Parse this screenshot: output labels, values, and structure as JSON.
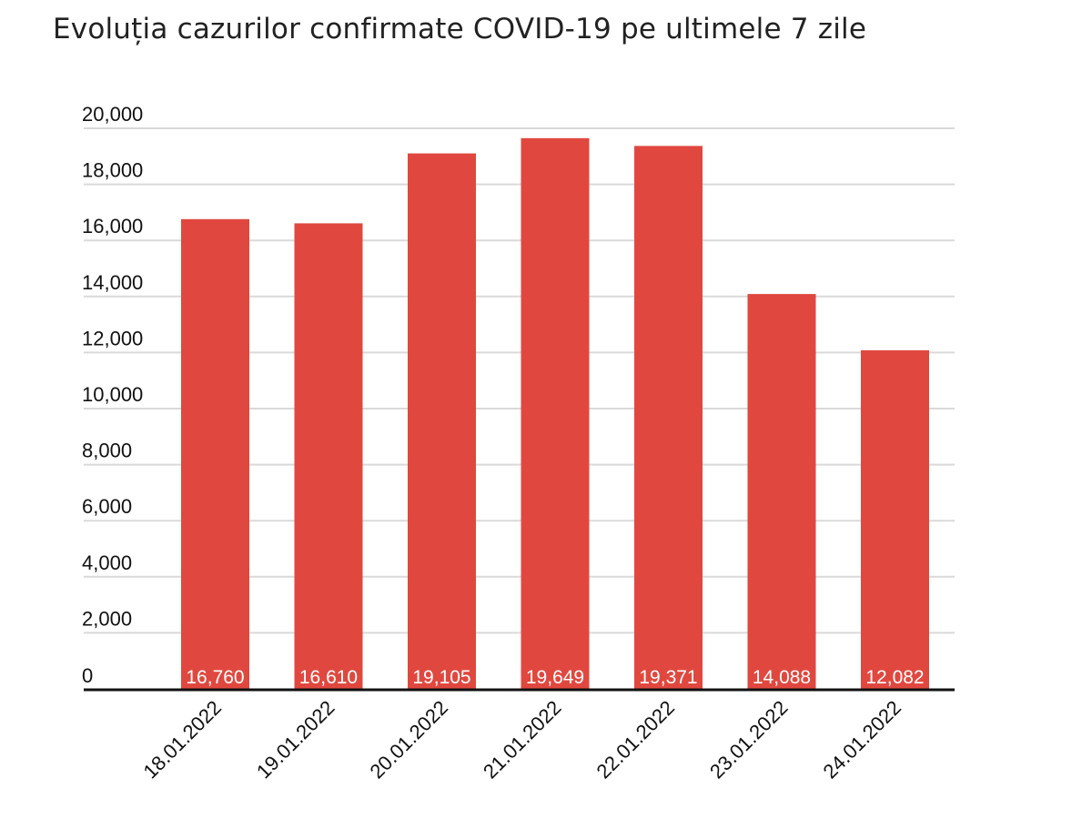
{
  "chart_data": {
    "type": "bar",
    "title": "Evoluția cazurilor confirmate COVID-19 pe ultimele 7 zile",
    "xlabel": "",
    "ylabel": "",
    "categories": [
      "18.01.2022",
      "19.01.2022",
      "20.01.2022",
      "21.01.2022",
      "22.01.2022",
      "23.01.2022",
      "24.01.2022"
    ],
    "values": [
      16760,
      16610,
      19105,
      19649,
      19371,
      14088,
      12082
    ],
    "data_labels": [
      "16,760",
      "16,610",
      "19,105",
      "19,649",
      "19,371",
      "14,088",
      "12,082"
    ],
    "ylim": [
      0,
      20000
    ],
    "yticks": [
      0,
      2000,
      4000,
      6000,
      8000,
      10000,
      12000,
      14000,
      16000,
      18000,
      20000
    ],
    "ytick_labels": [
      "0",
      "2,000",
      "4,000",
      "6,000",
      "8,000",
      "10,000",
      "12,000",
      "14,000",
      "16,000",
      "18,000",
      "20,000"
    ],
    "grid": true,
    "legend": "none",
    "colors": {
      "bar": "#e0483f",
      "grid": "#d9d9d9",
      "axis": "#111111",
      "data_label": "#ffffff",
      "text": "#111111"
    }
  }
}
